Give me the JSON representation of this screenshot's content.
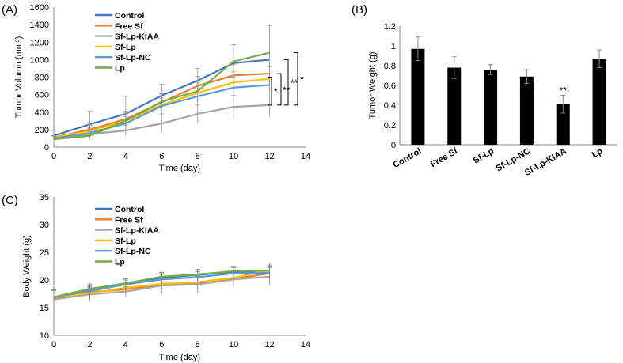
{
  "chart_data": [
    {
      "id": "A",
      "panel_label": "(A)",
      "type": "line",
      "xlabel": "Time (day)",
      "ylabel": "Tumor Volumn (mm³)",
      "xlim": [
        0,
        14
      ],
      "ylim": [
        0,
        1600
      ],
      "xticks": [
        0,
        2,
        4,
        6,
        8,
        10,
        12,
        14
      ],
      "yticks": [
        0,
        200,
        400,
        600,
        800,
        1000,
        1200,
        1400,
        1600
      ],
      "x": [
        0,
        2,
        4,
        6,
        8,
        10,
        12
      ],
      "series": [
        {
          "name": "Control",
          "color": "#4472C4",
          "values": [
            130,
            260,
            380,
            590,
            760,
            960,
            1000
          ],
          "err": [
            60,
            150,
            200,
            130,
            140,
            210,
            390
          ]
        },
        {
          "name": "Free Sf",
          "color": "#ED7D31",
          "values": [
            110,
            200,
            320,
            510,
            700,
            820,
            840
          ],
          "err": [
            40,
            80,
            90,
            100,
            110,
            120,
            130
          ]
        },
        {
          "name": "Sf-Lp-KIAA",
          "color": "#A5A5A5",
          "values": [
            100,
            150,
            190,
            270,
            380,
            460,
            480
          ],
          "err": [
            30,
            60,
            60,
            110,
            100,
            130,
            140
          ]
        },
        {
          "name": "Sf-Lp",
          "color": "#FFC000",
          "values": [
            110,
            180,
            300,
            480,
            620,
            740,
            780
          ],
          "err": [
            40,
            70,
            90,
            100,
            120,
            120,
            140
          ]
        },
        {
          "name": "Sf-Lp-NC",
          "color": "#5B9BD5",
          "values": [
            100,
            160,
            270,
            470,
            580,
            680,
            710
          ],
          "err": [
            30,
            60,
            80,
            90,
            110,
            120,
            130
          ]
        },
        {
          "name": "Lp",
          "color": "#70AD47",
          "values": [
            90,
            130,
            300,
            520,
            640,
            980,
            1080
          ],
          "err": [
            30,
            50,
            80,
            90,
            120,
            190,
            310
          ]
        }
      ],
      "annotations": [
        "*",
        "**",
        "**",
        "*"
      ]
    },
    {
      "id": "B",
      "panel_label": "(B)",
      "type": "bar",
      "xlabel": "",
      "ylabel": "Tumor Weight (g)",
      "ylim": [
        0,
        1.2
      ],
      "yticks": [
        "0",
        "0.2",
        "0.4",
        "0.6",
        "0.8",
        "1",
        "1.2"
      ],
      "ytick_values": [
        0,
        0.2,
        0.4,
        0.6,
        0.8,
        1.0,
        1.2
      ],
      "categories": [
        "Control",
        "Free Sf",
        "Sf-Lp",
        "Sf-Lp-NC",
        "Sf-Lp-KIAA",
        "Lp"
      ],
      "values": [
        0.97,
        0.78,
        0.76,
        0.69,
        0.41,
        0.87
      ],
      "err": [
        0.12,
        0.11,
        0.05,
        0.07,
        0.09,
        0.09
      ],
      "bar_color": "#000000",
      "annotations": [
        {
          "category": "Sf-Lp-KIAA",
          "text": "**"
        }
      ]
    },
    {
      "id": "C",
      "panel_label": "(C)",
      "type": "line",
      "xlabel": "Time (day)",
      "ylabel": "Body Weight (g)",
      "xlim": [
        0,
        14
      ],
      "ylim": [
        10,
        35
      ],
      "xticks": [
        0,
        2,
        4,
        6,
        8,
        10,
        12,
        14
      ],
      "yticks": [
        10,
        15,
        20,
        25,
        30,
        35
      ],
      "x": [
        0,
        2,
        4,
        6,
        8,
        10,
        12
      ],
      "series": [
        {
          "name": "Control",
          "color": "#4472C4",
          "values": [
            16.8,
            18.3,
            19.4,
            20.4,
            20.9,
            21.5,
            21.2
          ],
          "err": [
            1.5,
            1.0,
            0.8,
            0.9,
            1.0,
            0.9,
            1.2
          ]
        },
        {
          "name": "Free Sf",
          "color": "#ED7D31",
          "values": [
            16.6,
            17.8,
            18.3,
            19.2,
            19.5,
            20.2,
            21.2
          ],
          "err": [
            1.5,
            1.0,
            0.8,
            1.0,
            1.2,
            1.3,
            1.5
          ]
        },
        {
          "name": "Sf-Lp-KIAA",
          "color": "#A5A5A5",
          "values": [
            16.5,
            17.4,
            17.9,
            19.0,
            19.2,
            20.1,
            20.6
          ],
          "err": [
            1.8,
            1.2,
            0.9,
            1.5,
            1.6,
            1.5,
            1.6
          ]
        },
        {
          "name": "Sf-Lp",
          "color": "#FFC000",
          "values": [
            16.9,
            17.6,
            18.6,
            19.3,
            19.6,
            20.4,
            21.8
          ],
          "err": [
            1.4,
            1.0,
            0.8,
            1.0,
            1.1,
            1.2,
            1.3
          ]
        },
        {
          "name": "Sf-Lp-NC",
          "color": "#5B9BD5",
          "values": [
            16.9,
            18.0,
            19.2,
            20.1,
            20.5,
            21.2,
            21.3
          ],
          "err": [
            1.3,
            0.9,
            0.8,
            0.9,
            1.0,
            1.0,
            1.2
          ]
        },
        {
          "name": "Lp",
          "color": "#70AD47",
          "values": [
            16.9,
            18.4,
            19.4,
            20.6,
            21.0,
            21.6,
            21.7
          ],
          "err": [
            1.2,
            0.9,
            0.8,
            0.8,
            0.9,
            0.9,
            1.0
          ]
        }
      ]
    }
  ]
}
